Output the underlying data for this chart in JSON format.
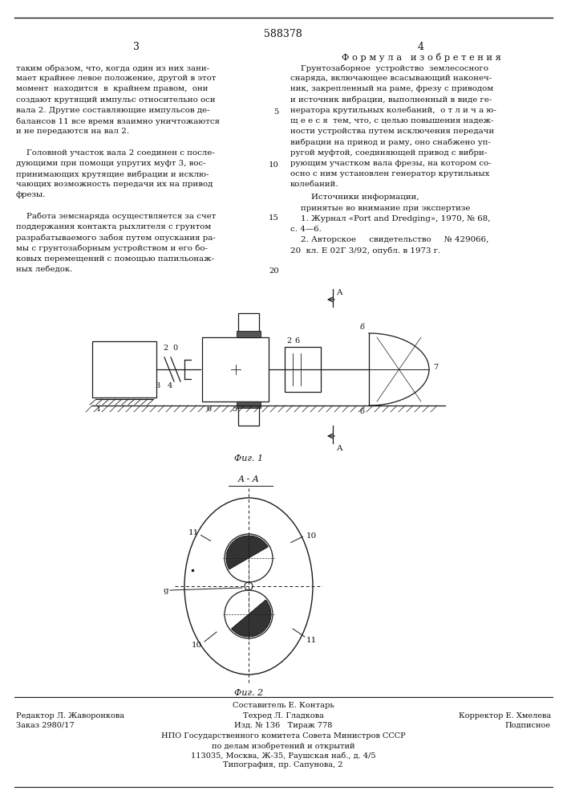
{
  "bg_color": "#ffffff",
  "page_color": "#ffffff",
  "border_color": "#1a1a1a",
  "text_color": "#111111",
  "patent_number": "588378",
  "page_left": "3",
  "page_right": "4",
  "section_title": "Ф о р м у л а   и з о б р е т е н и я",
  "left_col_lines": [
    "таким образом, что, когда один из них зани-",
    "мает крайнее левое положение, другой в этот",
    "момент  находится  в  крайнем правом,  они",
    "создают крутящий импульс относительно оси",
    "вала 2. Другие составляющие импульсов де-",
    "балансов 11 все время взаимно уничтожаются",
    "и не передаются на вал 2.",
    "",
    "    Головной участок вала 2 соединен с после-",
    "дующими при помощи упругих муфт 3, вос-",
    "принимающих крутящие вибрации и исклю-",
    "чающих возможность передачи их на привод",
    "фрезы.",
    "",
    "    Работа земснаряда осуществляется за счет",
    "поддержания контакта рыхлителя с грунтом",
    "разрабатываемого забоя путем опускания ра-",
    "мы с грунтозаборным устройством и его бо-",
    "ковых перемещений с помощью папильонаж-",
    "ных лебедок."
  ],
  "right_col_lines": [
    "    Грунтозаборное  устройство  землесосного",
    "снаряда, включающее всасывающий наконеч-",
    "ник, закрепленный на раме, фрезу с приводом",
    "и источник вибрации, выполненный в виде ге-",
    "нератора крутильных колебаний,  о т л и ч а ю-",
    "щ е е с я  тем, что, с целью повышения надеж-",
    "ности устройства путем исключения передачи",
    "вибрации на привод и раму, оно снабжено уп-",
    "ругой муфтой, соединяющей привод с вибри-",
    "рующим участком вала фрезы, на котором со-",
    "осно с ним установлен генератор крутильных",
    "колебаний."
  ],
  "src_header": "        Источники информации,",
  "src_lines": [
    "    принятые во внимание при экспертизе",
    "    1. Журнал «Port and Dredging», 1970, № 68,",
    "с. 4—6.",
    "    2. Авторское     свидетельство     № 429066,",
    "20  кл. Е 02Г 3/92, опубл. в 1973 г."
  ],
  "line_nums": [
    null,
    null,
    null,
    null,
    "5",
    null,
    null,
    null,
    null,
    "10",
    null,
    null,
    null,
    null,
    "15",
    null,
    null,
    null,
    null,
    "20"
  ],
  "fig1_caption": "Фиг. 1",
  "fig2_caption": "Фиг. 2",
  "aa_label": "A - A",
  "bottom_composer": "Составитель Е. Контарь",
  "bottom_row1": [
    "Редактор Л. Жаворонкова",
    "Техред Л. Гладкова",
    "Корректор Е. Хмелева"
  ],
  "bottom_row2": [
    "Заказ 2980/17",
    "Изд. № 136   Тираж 778",
    "Подписное"
  ],
  "bottom_row3": "НПО Государственного комитета Совета Министров СССР",
  "bottom_row4": "по делам изобретений и открытий",
  "bottom_row5": "113035, Москва, Ж-35, Раушская наб., д. 4/5",
  "bottom_row6": "Типография, пр. Сапунова, 2"
}
